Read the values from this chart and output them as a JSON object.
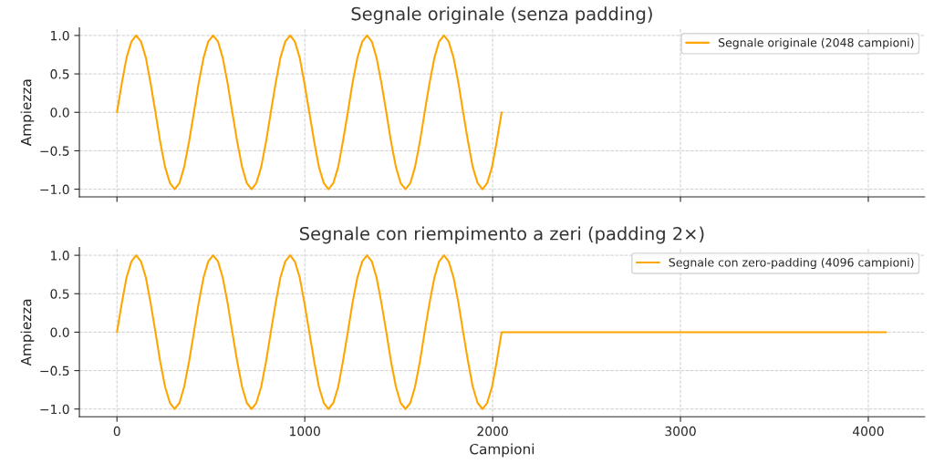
{
  "chart_data": [
    {
      "type": "line",
      "title": "Segnale originale (senza padding)",
      "ylabel": "Ampiezza",
      "xlim": [
        -200,
        4300
      ],
      "xticks": [
        0,
        1000,
        2000,
        3000,
        4000
      ],
      "ylim": [
        -1.1,
        1.1
      ],
      "yticks": [
        {
          "value": -1,
          "label": "−1.0"
        },
        {
          "value": -0.5,
          "label": "−0.5"
        },
        {
          "value": 0,
          "label": "0.0"
        },
        {
          "value": 0.5,
          "label": "0.5"
        },
        {
          "value": 1,
          "label": "1.0"
        }
      ],
      "grid": true,
      "legend": "top right",
      "tick_labels": "y",
      "series": [
        {
          "name": "Segnale originale (2048 campioni)",
          "color": "#ffa500",
          "x": [
            0,
            26,
            51,
            77,
            102,
            128,
            154,
            179,
            205,
            230,
            256,
            282,
            307,
            333,
            358,
            384,
            410,
            435,
            461,
            486,
            512,
            538,
            563,
            589,
            614,
            640,
            666,
            691,
            717,
            742,
            768,
            794,
            819,
            845,
            870,
            896,
            922,
            947,
            973,
            998,
            1024,
            1050,
            1075,
            1101,
            1126,
            1152,
            1178,
            1203,
            1229,
            1254,
            1280,
            1306,
            1331,
            1357,
            1382,
            1408,
            1434,
            1459,
            1485,
            1510,
            1536,
            1562,
            1587,
            1613,
            1638,
            1664,
            1690,
            1715,
            1741,
            1766,
            1792,
            1818,
            1843,
            1869,
            1894,
            1920,
            1946,
            1971,
            1997,
            2022,
            2048
          ],
          "values": [
            0,
            0.38,
            0.71,
            0.92,
            1,
            0.92,
            0.71,
            0.38,
            0,
            -0.38,
            -0.71,
            -0.92,
            -1,
            -0.92,
            -0.71,
            -0.38,
            0,
            0.38,
            0.71,
            0.92,
            1,
            0.92,
            0.71,
            0.38,
            0,
            -0.38,
            -0.71,
            -0.92,
            -1,
            -0.92,
            -0.71,
            -0.38,
            0,
            0.38,
            0.71,
            0.92,
            1,
            0.92,
            0.71,
            0.38,
            0,
            -0.38,
            -0.71,
            -0.92,
            -1,
            -0.92,
            -0.71,
            -0.38,
            0,
            0.38,
            0.71,
            0.92,
            1,
            0.92,
            0.71,
            0.38,
            0,
            -0.38,
            -0.71,
            -0.92,
            -1,
            -0.92,
            -0.71,
            -0.38,
            0,
            0.38,
            0.71,
            0.92,
            1,
            0.92,
            0.71,
            0.38,
            0,
            -0.38,
            -0.71,
            -0.92,
            -1,
            -0.92,
            -0.71,
            -0.38,
            0
          ]
        }
      ]
    },
    {
      "type": "line",
      "title": "Segnale con riempimento a zeri (padding 2×)",
      "xlabel": "Campioni",
      "ylabel": "Ampiezza",
      "xlim": [
        -200,
        4300
      ],
      "xticks": [
        0,
        1000,
        2000,
        3000,
        4000
      ],
      "ylim": [
        -1.1,
        1.1
      ],
      "yticks": [
        {
          "value": -1,
          "label": "−1.0"
        },
        {
          "value": -0.5,
          "label": "−0.5"
        },
        {
          "value": 0,
          "label": "0.0"
        },
        {
          "value": 0.5,
          "label": "0.5"
        },
        {
          "value": 1,
          "label": "1.0"
        }
      ],
      "grid": true,
      "legend": "top right",
      "series": [
        {
          "name": "Segnale con zero-padding (4096 campioni)",
          "color": "#ffa500",
          "x": [
            0,
            26,
            51,
            77,
            102,
            128,
            154,
            179,
            205,
            230,
            256,
            282,
            307,
            333,
            358,
            384,
            410,
            435,
            461,
            486,
            512,
            538,
            563,
            589,
            614,
            640,
            666,
            691,
            717,
            742,
            768,
            794,
            819,
            845,
            870,
            896,
            922,
            947,
            973,
            998,
            1024,
            1050,
            1075,
            1101,
            1126,
            1152,
            1178,
            1203,
            1229,
            1254,
            1280,
            1306,
            1331,
            1357,
            1382,
            1408,
            1434,
            1459,
            1485,
            1510,
            1536,
            1562,
            1587,
            1613,
            1638,
            1664,
            1690,
            1715,
            1741,
            1766,
            1792,
            1818,
            1843,
            1869,
            1894,
            1920,
            1946,
            1971,
            1997,
            2022,
            2048,
            4095
          ],
          "values": [
            0,
            0.38,
            0.71,
            0.92,
            1,
            0.92,
            0.71,
            0.38,
            0,
            -0.38,
            -0.71,
            -0.92,
            -1,
            -0.92,
            -0.71,
            -0.38,
            0,
            0.38,
            0.71,
            0.92,
            1,
            0.92,
            0.71,
            0.38,
            0,
            -0.38,
            -0.71,
            -0.92,
            -1,
            -0.92,
            -0.71,
            -0.38,
            0,
            0.38,
            0.71,
            0.92,
            1,
            0.92,
            0.71,
            0.38,
            0,
            -0.38,
            -0.71,
            -0.92,
            -1,
            -0.92,
            -0.71,
            -0.38,
            0,
            0.38,
            0.71,
            0.92,
            1,
            0.92,
            0.71,
            0.38,
            0,
            -0.38,
            -0.71,
            -0.92,
            -1,
            -0.92,
            -0.71,
            -0.38,
            0,
            0.38,
            0.71,
            0.92,
            1,
            0.92,
            0.71,
            0.38,
            0,
            -0.38,
            -0.71,
            -0.92,
            -1,
            -0.92,
            -0.71,
            -0.38,
            0,
            0
          ]
        }
      ]
    }
  ]
}
